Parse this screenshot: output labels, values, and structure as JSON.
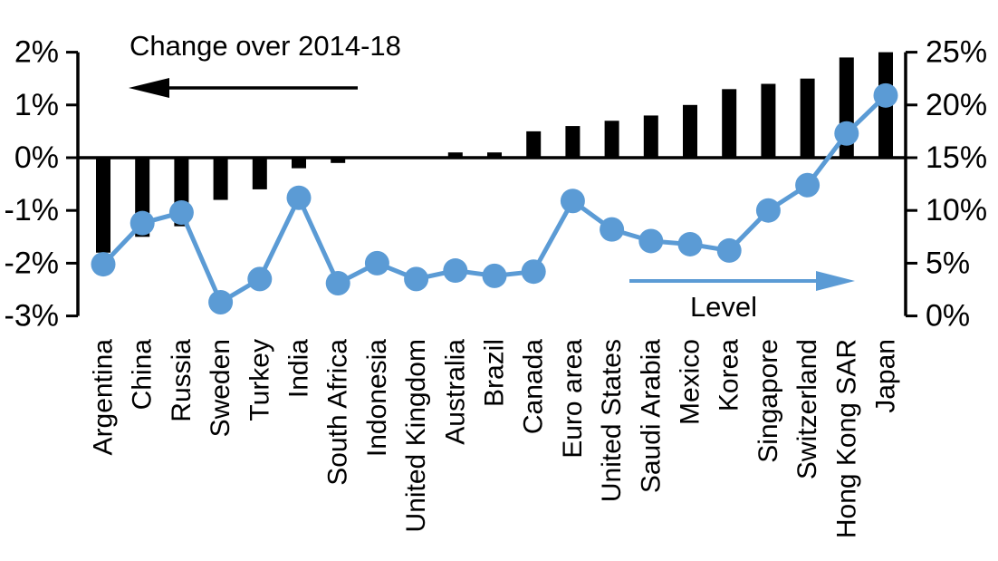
{
  "chart_data": {
    "type": "bar+line dual-axis combo",
    "title": "",
    "categories": [
      "Argentina",
      "China",
      "Russia",
      "Sweden",
      "Turkey",
      "India",
      "South Africa",
      "Indonesia",
      "United Kingdom",
      "Australia",
      "Brazil",
      "Canada",
      "Euro area",
      "United States",
      "Saudi Arabia",
      "Mexico",
      "Korea",
      "Singapore",
      "Switzerland",
      "Hong Kong SAR",
      "Japan"
    ],
    "series": [
      {
        "name": "Change over 2014-18",
        "type": "bar",
        "axis": "left",
        "color": "#000000",
        "values": [
          -1.8,
          -1.5,
          -1.3,
          -0.8,
          -0.6,
          -0.2,
          -0.1,
          0,
          0,
          0.1,
          0.1,
          0.5,
          0.6,
          0.7,
          0.8,
          1.0,
          1.3,
          1.4,
          1.5,
          1.9,
          2.0
        ]
      },
      {
        "name": "Level",
        "type": "line",
        "axis": "right",
        "color": "#5B9BD5",
        "values": [
          4.9,
          8.8,
          9.8,
          1.3,
          3.5,
          11.2,
          3.1,
          5.0,
          3.5,
          4.3,
          3.8,
          4.2,
          10.9,
          8.2,
          7.1,
          6.8,
          6.2,
          10.0,
          12.4,
          17.3,
          20.9
        ]
      }
    ],
    "left_axis": {
      "min": -3,
      "max": 2,
      "tick_values": [
        2,
        1,
        0,
        -1,
        -2,
        -3
      ],
      "tick_labels": [
        "2%",
        "1%",
        "0%",
        "-1%",
        "-2%",
        "-3%"
      ]
    },
    "right_axis": {
      "min": 0,
      "max": 25,
      "tick_values": [
        25,
        20,
        15,
        10,
        5,
        0
      ],
      "tick_labels": [
        "25%",
        "20%",
        "15%",
        "10%",
        "5%",
        "0%"
      ]
    },
    "annotations": [
      {
        "text": "Change over 2014-18",
        "arrow": "left",
        "color": "#000000"
      },
      {
        "text": "Level",
        "arrow": "right",
        "color": "#5B9BD5"
      }
    ],
    "grid": false,
    "legend": "in-chart arrow annotations"
  }
}
